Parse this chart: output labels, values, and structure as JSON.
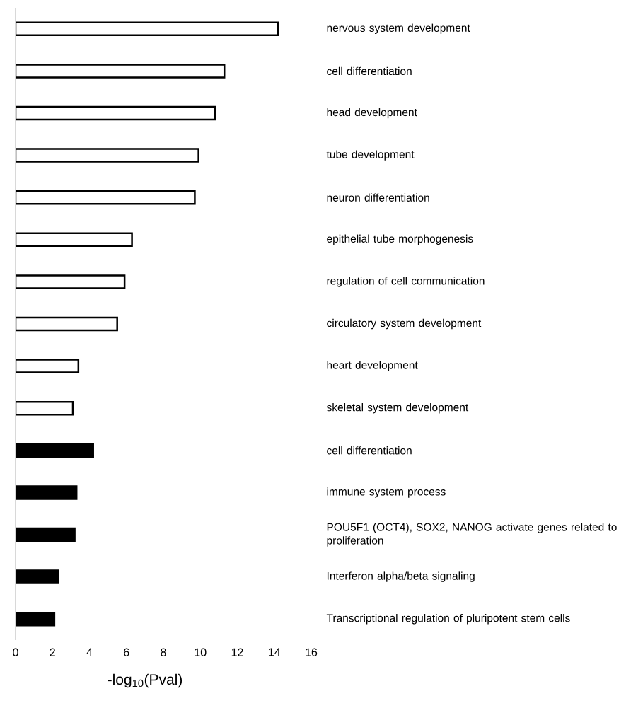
{
  "chart_data": {
    "type": "bar",
    "orientation": "horizontal",
    "xlabel": "-log$_{10}$(Pval)",
    "categories": [
      "nervous system development",
      "cell differentiation",
      "head development",
      "tube development",
      "neuron differentiation",
      "epithelial tube morphogenesis",
      "regulation of cell communication",
      "circulatory system development",
      "heart development",
      "skeletal system development",
      "cell differentiation",
      "immune system process",
      "POU5F1 (OCT4), SOX2, NANOG activate genes related to proliferation",
      "Interferon alpha/beta signaling",
      "Transcriptional regulation of pluripotent stem cells"
    ],
    "values": [
      14.2,
      11.3,
      10.8,
      9.9,
      9.7,
      6.3,
      5.9,
      5.5,
      3.4,
      3.1,
      4.2,
      3.3,
      3.2,
      2.3,
      2.1
    ],
    "colors": [
      "#ffffff",
      "#ffffff",
      "#ffffff",
      "#ffffff",
      "#ffffff",
      "#ffffff",
      "#ffffff",
      "#ffffff",
      "#ffffff",
      "#ffffff",
      "#000000",
      "#000000",
      "#000000",
      "#000000",
      "#000000"
    ],
    "xlim": [
      0,
      16
    ],
    "xticks": [
      0,
      2,
      4,
      6,
      8,
      10,
      12,
      14,
      16
    ]
  }
}
